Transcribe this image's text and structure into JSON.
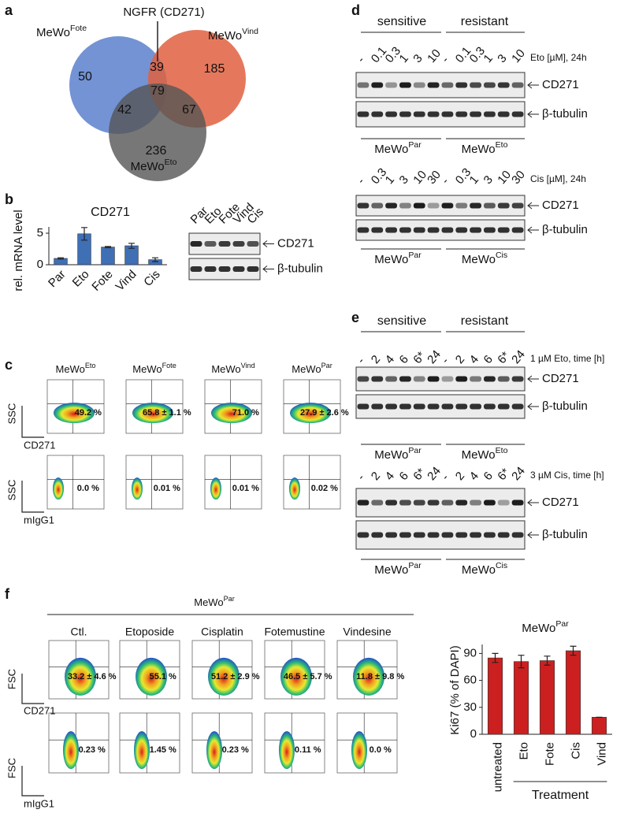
{
  "a": {
    "letter": "a",
    "ngfr": "NGFR (CD271)",
    "sets": [
      {
        "base": "MeWo",
        "sup": "Fote"
      },
      {
        "base": "MeWo",
        "sup": "Vind"
      },
      {
        "base": "MeWo",
        "sup": "Eto"
      }
    ],
    "counts": [
      50,
      39,
      185,
      79,
      42,
      67,
      236
    ]
  },
  "b": {
    "letter": "b",
    "blot": {
      "lanes": [
        "Par",
        "Eto",
        "Fote",
        "Vind",
        "Cis"
      ],
      "bands": [
        "CD271",
        "β-tubulin"
      ]
    }
  },
  "c": {
    "letter": "c",
    "columns": [
      {
        "base": "MeWo",
        "sup": "Eto"
      },
      {
        "base": "MeWo",
        "sup": "Fote"
      },
      {
        "base": "MeWo",
        "sup": "Vind"
      },
      {
        "base": "MeWo",
        "sup": "Par"
      }
    ],
    "yaxis": "SSC",
    "xaxis": [
      "CD271",
      "mIgG1"
    ],
    "percent": [
      [
        "49.2 %",
        "65.8 ± 1.1 %",
        "71.0 %",
        "27.9 ± 2.6 %"
      ],
      [
        "0.0 %",
        "0.01 %",
        "0.01 %",
        "0.02 %"
      ]
    ]
  },
  "d": {
    "letter": "d",
    "groups": [
      "sensitive",
      "resistant"
    ],
    "blots": [
      {
        "lanes": [
          "-",
          "0.1",
          "0.3",
          "1",
          "3",
          "10",
          "-",
          "0.1",
          "0.3",
          "1",
          "3",
          "10"
        ],
        "condition": "Eto [µM], 24h",
        "bands": [
          "CD271",
          "β-tubulin"
        ],
        "cells": [
          {
            "base": "MeWo",
            "sup": "Par"
          },
          {
            "base": "MeWo",
            "sup": "Eto"
          }
        ]
      },
      {
        "lanes": [
          "-",
          "0.3",
          "1",
          "3",
          "10",
          "30",
          "-",
          "0.3",
          "1",
          "3",
          "10",
          "30"
        ],
        "condition": "Cis [µM], 24h",
        "bands": [
          "CD271",
          "β-tubulin"
        ],
        "cells": [
          {
            "base": "MeWo",
            "sup": "Par"
          },
          {
            "base": "MeWo",
            "sup": "Cis"
          }
        ]
      }
    ]
  },
  "e": {
    "letter": "e",
    "groups": [
      "sensitive",
      "resistant"
    ],
    "blots": [
      {
        "lanes": [
          "-",
          "2",
          "4",
          "6",
          "6*",
          "24",
          "-",
          "2",
          "4",
          "6",
          "6*",
          "24"
        ],
        "condition": "1 µM Eto, time [h]",
        "bands": [
          "CD271",
          "β-tubulin"
        ],
        "cells": [
          {
            "base": "MeWo",
            "sup": "Par"
          },
          {
            "base": "MeWo",
            "sup": "Eto"
          }
        ]
      },
      {
        "lanes": [
          "-",
          "2",
          "4",
          "6",
          "6*",
          "24",
          "-",
          "2",
          "4",
          "6",
          "6*",
          "24"
        ],
        "condition": "3 µM Cis, time [h]",
        "bands": [
          "CD271",
          "β-tubulin"
        ],
        "cells": [
          {
            "base": "MeWo",
            "sup": "Par"
          },
          {
            "base": "MeWo",
            "sup": "Cis"
          }
        ]
      }
    ]
  },
  "f": {
    "letter": "f",
    "header": {
      "base": "MeWo",
      "sup": "Par"
    },
    "columns": [
      "Ctl.",
      "Etoposide",
      "Cisplatin",
      "Fotemustine",
      "Vindesine"
    ],
    "yaxis": "FSC",
    "xaxis": [
      "CD271",
      "mIgG1"
    ],
    "percent": [
      [
        "33.2 ± 4.6 %",
        "55.1 %",
        "51.2 ± 2.9 %",
        "46.5 ± 5.7 %",
        "11.8 ± 9.8 %"
      ],
      [
        "0.23 %",
        "1.45 %",
        "0.23 %",
        "0.11 %",
        "0.0 %"
      ]
    ]
  },
  "chart_data": [
    {
      "type": "bar",
      "title": "CD271",
      "y_label": "rel. mRNA level",
      "categories": [
        "Par",
        "Eto",
        "Fote",
        "Vind",
        "Cis"
      ],
      "values": [
        1,
        4.9,
        2.8,
        3.0,
        0.8
      ],
      "errors": [
        0.1,
        1.0,
        0.1,
        0.4,
        0.3
      ],
      "color": "#3f6fb5",
      "ylim": [
        0,
        6
      ],
      "yticks": [
        0,
        5
      ]
    },
    {
      "type": "bar",
      "title": {
        "base": "MeWo",
        "sup": "Par"
      },
      "y_label": "Ki67 (% of DAPI)",
      "categories": [
        "untreated",
        "Eto",
        "Fote",
        "Cis",
        "Vind"
      ],
      "values": [
        85,
        81,
        82,
        93,
        19
      ],
      "errors": [
        5,
        7,
        5,
        5,
        0
      ],
      "x_group": "Treatment",
      "color": "#cc2020",
      "ylim": [
        0,
        100
      ],
      "yticks": [
        0,
        30,
        60,
        90
      ]
    }
  ]
}
